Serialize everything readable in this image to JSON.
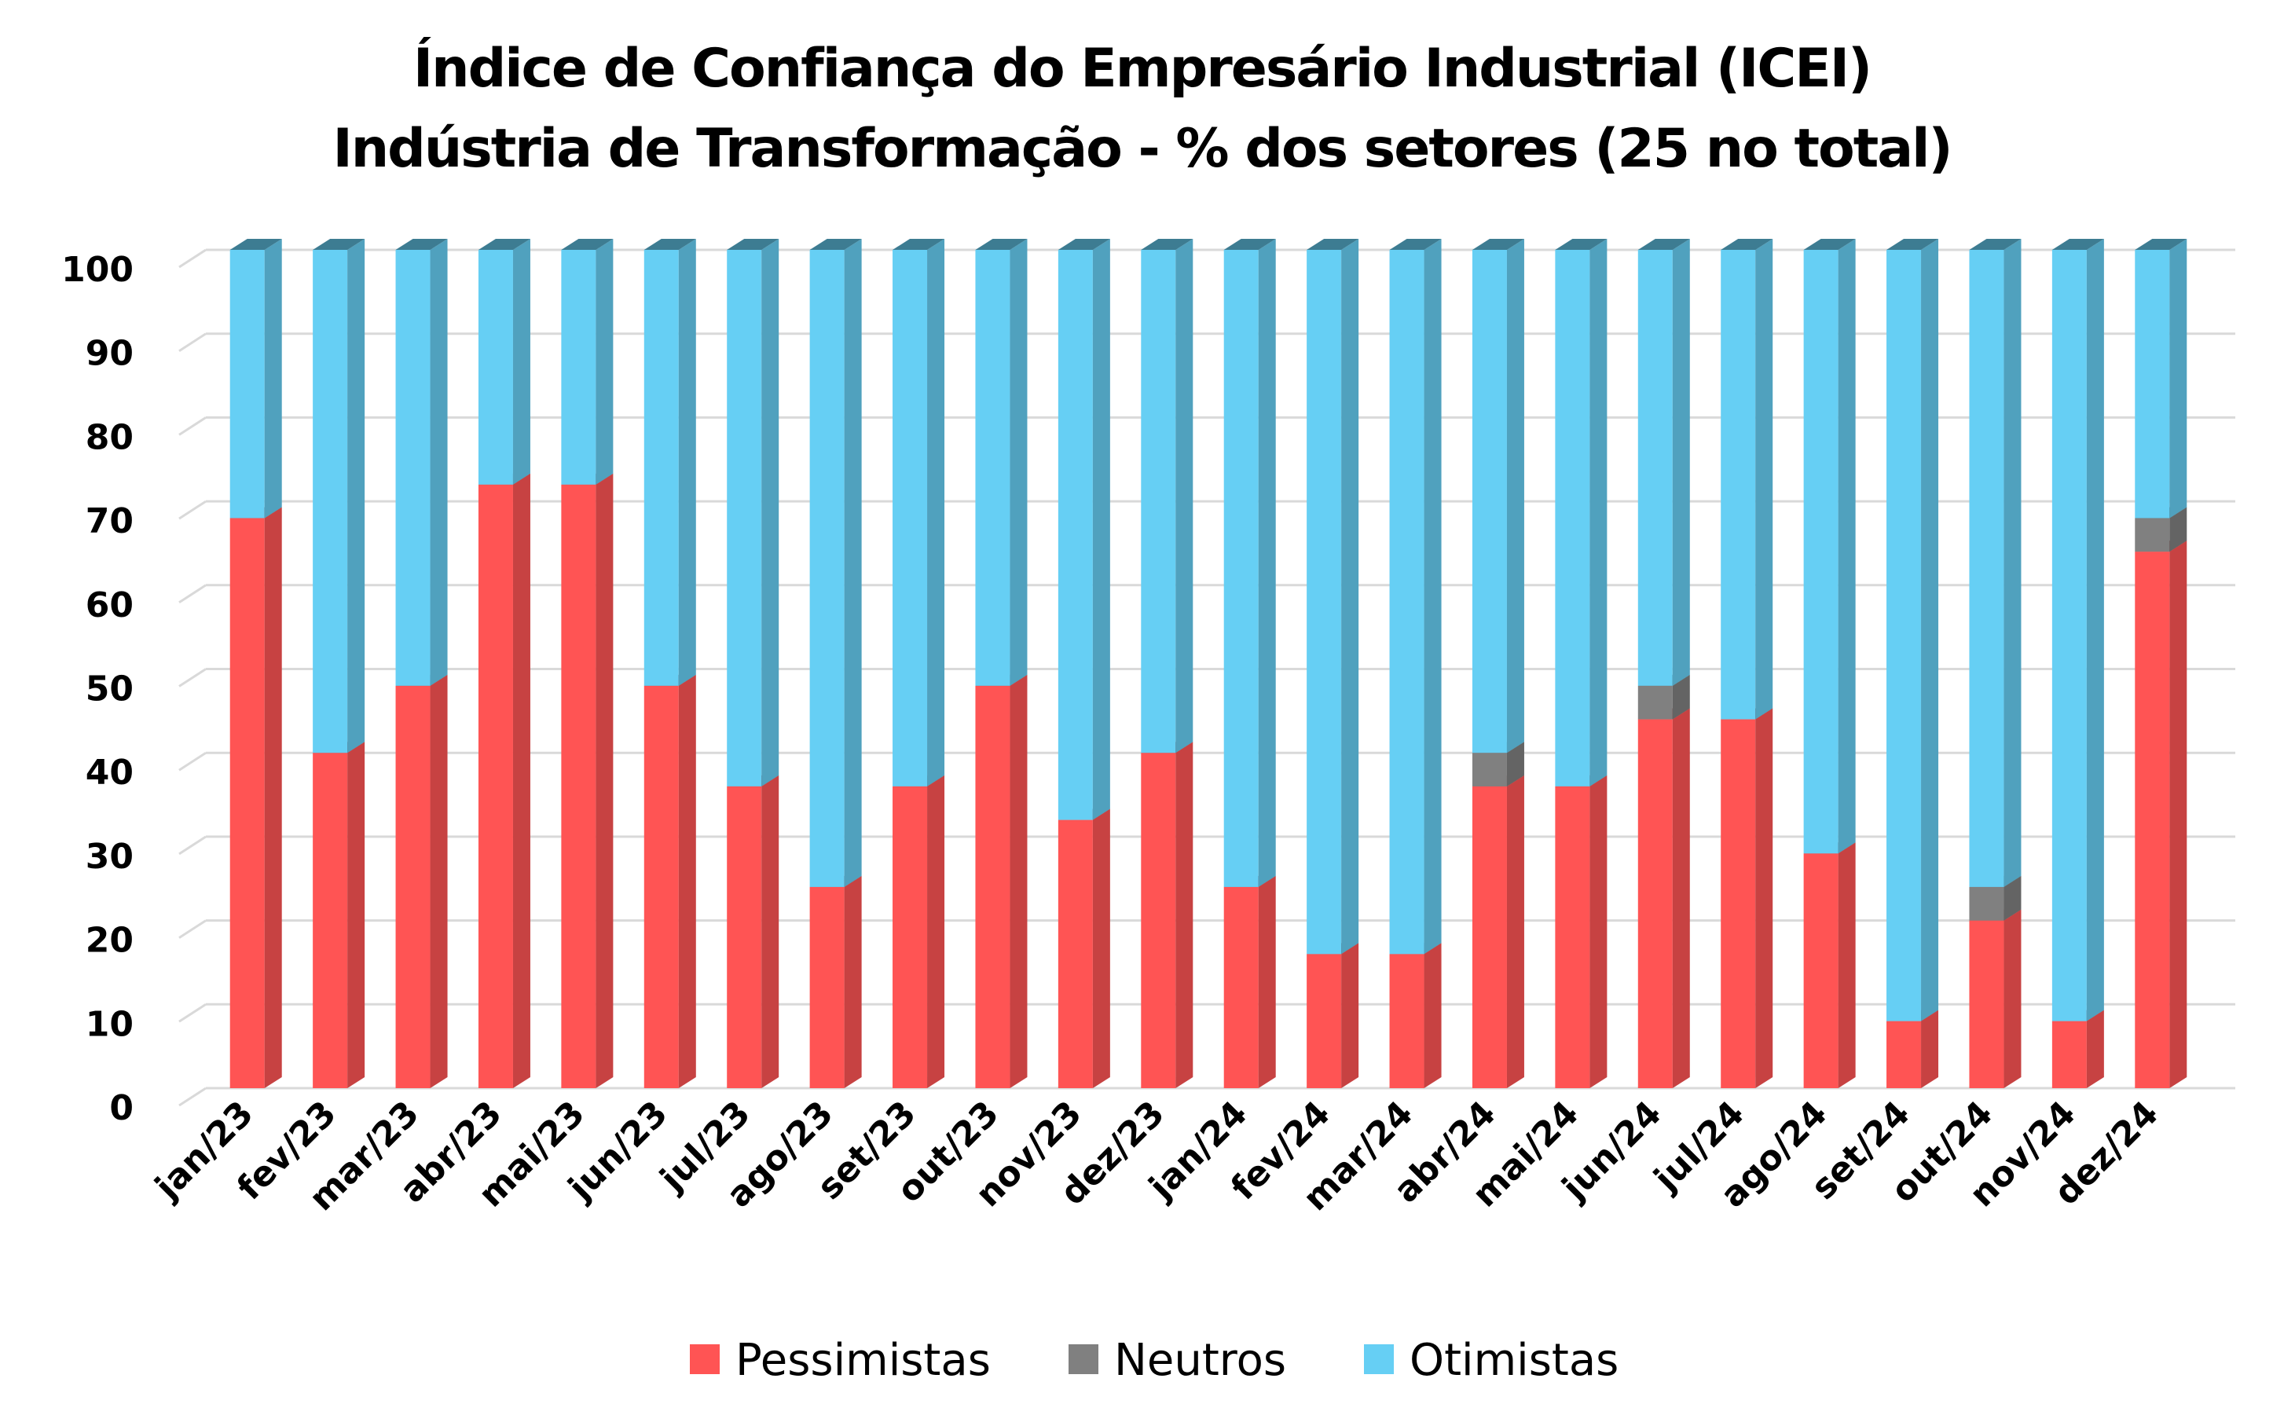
{
  "chart_data": {
    "type": "bar",
    "stacked": true,
    "style": "3d-column",
    "title": "Índice de Confiança do Empresário Industrial (ICEI)",
    "subtitle": "Indústria de Transformação - % dos setores (25 no total)",
    "xlabel": "",
    "ylabel": "",
    "ylim": [
      0,
      100
    ],
    "yticks": [
      0,
      10,
      20,
      30,
      40,
      50,
      60,
      70,
      80,
      90,
      100
    ],
    "grid": true,
    "legend_position": "bottom",
    "categories": [
      "jan/23",
      "fev/23",
      "mar/23",
      "abr/23",
      "mai/23",
      "jun/23",
      "jul/23",
      "ago/23",
      "set/23",
      "out/23",
      "nov/23",
      "dez/23",
      "jan/24",
      "fev/24",
      "mar/24",
      "abr/24",
      "mai/24",
      "jun/24",
      "jul/24",
      "ago/24",
      "set/24",
      "out/24",
      "nov/24",
      "dez/24"
    ],
    "series": [
      {
        "name": "Pessimistas",
        "color": "#FF5454",
        "values": [
          68,
          40,
          48,
          72,
          72,
          48,
          36,
          24,
          36,
          48,
          32,
          40,
          24,
          16,
          16,
          36,
          36,
          44,
          44,
          28,
          8,
          20,
          8,
          64
        ]
      },
      {
        "name": "Neutros",
        "color": "#808080",
        "values": [
          0,
          0,
          0,
          0,
          0,
          0,
          0,
          0,
          0,
          0,
          0,
          0,
          0,
          0,
          0,
          4,
          0,
          4,
          0,
          0,
          0,
          4,
          0,
          4
        ]
      },
      {
        "name": "Otimistas",
        "color": "#66CFF4",
        "values": [
          32,
          60,
          52,
          28,
          28,
          52,
          64,
          76,
          64,
          52,
          68,
          60,
          76,
          84,
          84,
          60,
          64,
          52,
          56,
          72,
          92,
          76,
          92,
          32
        ]
      }
    ]
  }
}
